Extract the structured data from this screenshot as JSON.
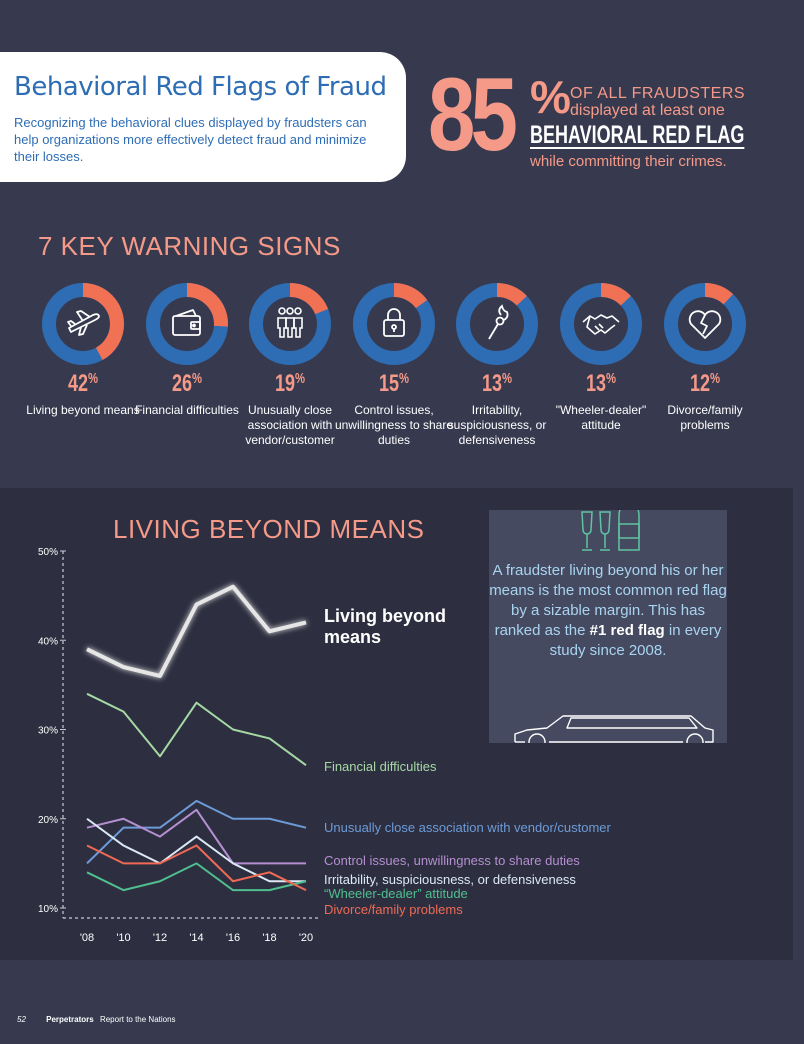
{
  "header": {
    "title": "Behavioral Red Flags of Fraud",
    "subtitle": "Recognizing the behavioral clues displayed by fraudsters can help organizations more effectively detect fraud and minimize their losses."
  },
  "stat": {
    "number": "85",
    "percent": "%",
    "line1": "OF ALL FRAUDSTERS",
    "line2": "displayed at least one",
    "line3": "BEHAVIORAL RED FLAG",
    "line4": "while committing their crimes."
  },
  "warning_signs": {
    "title": "7 KEY WARNING SIGNS",
    "items": [
      {
        "value": 42,
        "pct": "42",
        "label": "Living beyond means",
        "icon": "airplane-icon"
      },
      {
        "value": 26,
        "pct": "26",
        "label": "Financial difficulties",
        "icon": "wallet-icon"
      },
      {
        "value": 19,
        "pct": "19",
        "label": "Unusually close association with vendor/customer",
        "icon": "people-icon"
      },
      {
        "value": 15,
        "pct": "15",
        "label": "Control issues, unwillingness to share duties",
        "icon": "lock-icon"
      },
      {
        "value": 13,
        "pct": "13",
        "label": "Irritability, suspiciousness, or defensiveness",
        "icon": "match-icon"
      },
      {
        "value": 13,
        "pct": "13",
        "label": "\"Wheeler-dealer\" attitude",
        "icon": "handshake-icon"
      },
      {
        "value": 12,
        "pct": "12",
        "label": "Divorce/family problems",
        "icon": "broken-heart-icon"
      }
    ],
    "colors": {
      "filled": "#f07154",
      "remaining": "#2e6db4"
    }
  },
  "callout": {
    "text_before": "A fraudster living beyond his or her means is the most common red flag by a sizable margin. This has ranked as the",
    "highlight": "#1 red flag",
    "text_after": "in every study since 2008."
  },
  "footer": {
    "page": "52",
    "section": "Perpetrators",
    "report": "Report to the Nations"
  },
  "chart_data": {
    "type": "line",
    "title": "LIVING BEYOND MEANS",
    "x": [
      "'08",
      "'10",
      "'12",
      "'14",
      "'16",
      "'18",
      "'20"
    ],
    "yticks": [
      "10%",
      "20%",
      "30%",
      "40%",
      "50%"
    ],
    "ylim": [
      9,
      50
    ],
    "grid": false,
    "series": [
      {
        "name": "Living beyond means",
        "color": "#e6e6e6",
        "values": [
          39,
          37,
          36,
          44,
          46,
          41,
          42
        ]
      },
      {
        "name": "Financial difficulties",
        "color": "#a6d9a4",
        "values": [
          34,
          32,
          27,
          33,
          30,
          29,
          26
        ]
      },
      {
        "name": "Unusually close association with vendor/customer",
        "color": "#6c9bd8",
        "values": [
          15,
          19,
          19,
          22,
          20,
          20,
          19
        ]
      },
      {
        "name": "Control issues, unwillingness to share duties",
        "color": "#b58fd1",
        "values": [
          19,
          20,
          18,
          21,
          15,
          15,
          15
        ]
      },
      {
        "name": "Irritability, suspiciousness, or defensiveness",
        "color": "#dce9f5",
        "values": [
          20,
          17,
          15,
          18,
          15,
          13,
          13
        ]
      },
      {
        "name": "“Wheeler-dealer” attitude",
        "color": "#4fbf8f",
        "values": [
          14,
          12,
          13,
          15,
          12,
          12,
          13
        ]
      },
      {
        "name": "Divorce/family problems",
        "color": "#ef6a55",
        "values": [
          17,
          15,
          15,
          17,
          13,
          14,
          12
        ]
      }
    ]
  }
}
